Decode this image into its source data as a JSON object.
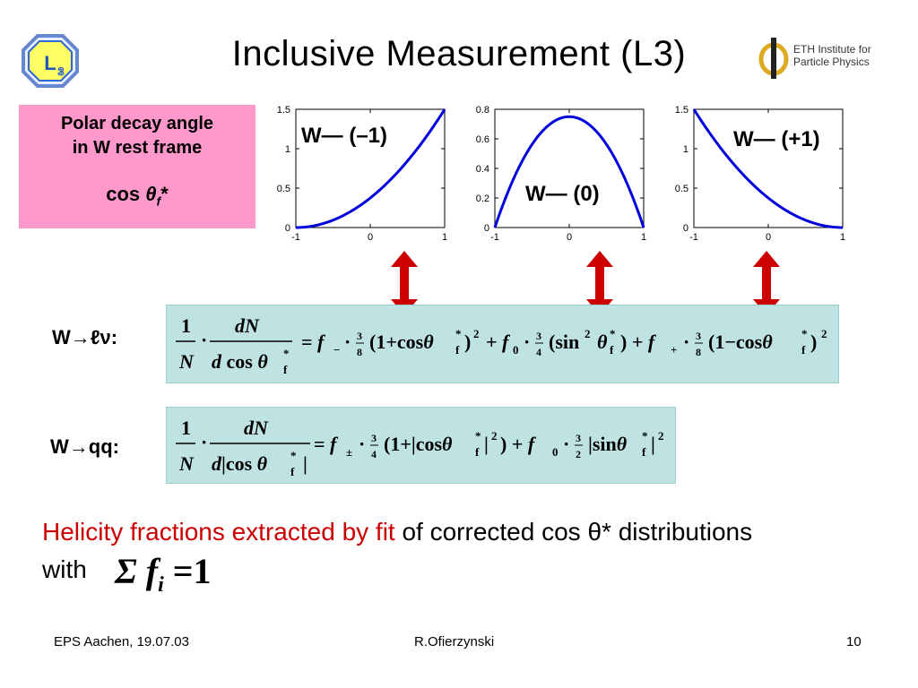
{
  "slide": {
    "title": "Inclusive Measurement (L3)",
    "logo_left": "L3",
    "logo_right_line1": "ETH Institute for",
    "logo_right_line2": "Particle Physics"
  },
  "pinkbox": {
    "line1": "Polar decay angle",
    "line2": "in W rest frame",
    "variable": "cos θf*"
  },
  "plots": [
    {
      "label": "W— (–1)",
      "xticks": [
        "-1",
        "0",
        "1"
      ],
      "yticks": [
        "0",
        "0.5",
        "1",
        "1.5"
      ]
    },
    {
      "label": "W— (0)",
      "xticks": [
        "-1",
        "0",
        "1"
      ],
      "yticks": [
        "0",
        "0.2",
        "0.4",
        "0.6",
        "0.8"
      ]
    },
    {
      "label": "W— (+1)",
      "xticks": [
        "-1",
        "0",
        "1"
      ],
      "yticks": [
        "0",
        "0.5",
        "1",
        "1.5"
      ]
    }
  ],
  "chart_data": [
    {
      "type": "line",
      "x": [
        -1,
        -0.5,
        0,
        0.5,
        1
      ],
      "series": [
        {
          "values": [
            0,
            0.09375,
            0.375,
            0.84375,
            1.5
          ]
        }
      ],
      "ylim": [
        0,
        1.5
      ],
      "xlim": [
        -1,
        1
      ]
    },
    {
      "type": "line",
      "x": [
        -1,
        -0.5,
        0,
        0.5,
        1
      ],
      "series": [
        {
          "values": [
            0,
            0.5625,
            0.75,
            0.5625,
            0
          ]
        }
      ],
      "ylim": [
        0,
        0.8
      ],
      "xlim": [
        -1,
        1
      ]
    },
    {
      "type": "line",
      "x": [
        -1,
        -0.5,
        0,
        0.5,
        1
      ],
      "series": [
        {
          "values": [
            1.5,
            0.84375,
            0.375,
            0.09375,
            0
          ]
        }
      ],
      "ylim": [
        0,
        1.5
      ],
      "xlim": [
        -1,
        1
      ]
    }
  ],
  "equations": {
    "lv_label": "W→ℓν:",
    "qq_label": "W→qq:",
    "lv_formula": "(1/N)·dN/d cos θf* = f−·3/8(1+cos θf*)² + f0·3/4(sin² θf*) + f+·3/8(1−cos θf*)²",
    "qq_formula": "(1/N)·dN/d|cos θf*| = f±·3/4(1+|cos θf*|²) + f0·3/2|sin θf*|²"
  },
  "conclusion": {
    "red_text": "Helicity fractions extracted by fit",
    "black_text": " of corrected cos θ* distributions",
    "with": "with",
    "sum": "Σ f",
    "sum_sub": "i",
    "sum_eq": " =1"
  },
  "footer": {
    "left": "EPS Aachen, 19.07.03",
    "center": "R.Ofierzynski",
    "right": "10"
  },
  "colors": {
    "curve": "#0000dd",
    "arrow": "#cc0000",
    "pink": "#ff99cc",
    "eqbox": "#bfe3e3",
    "red_text": "#cc0000"
  }
}
